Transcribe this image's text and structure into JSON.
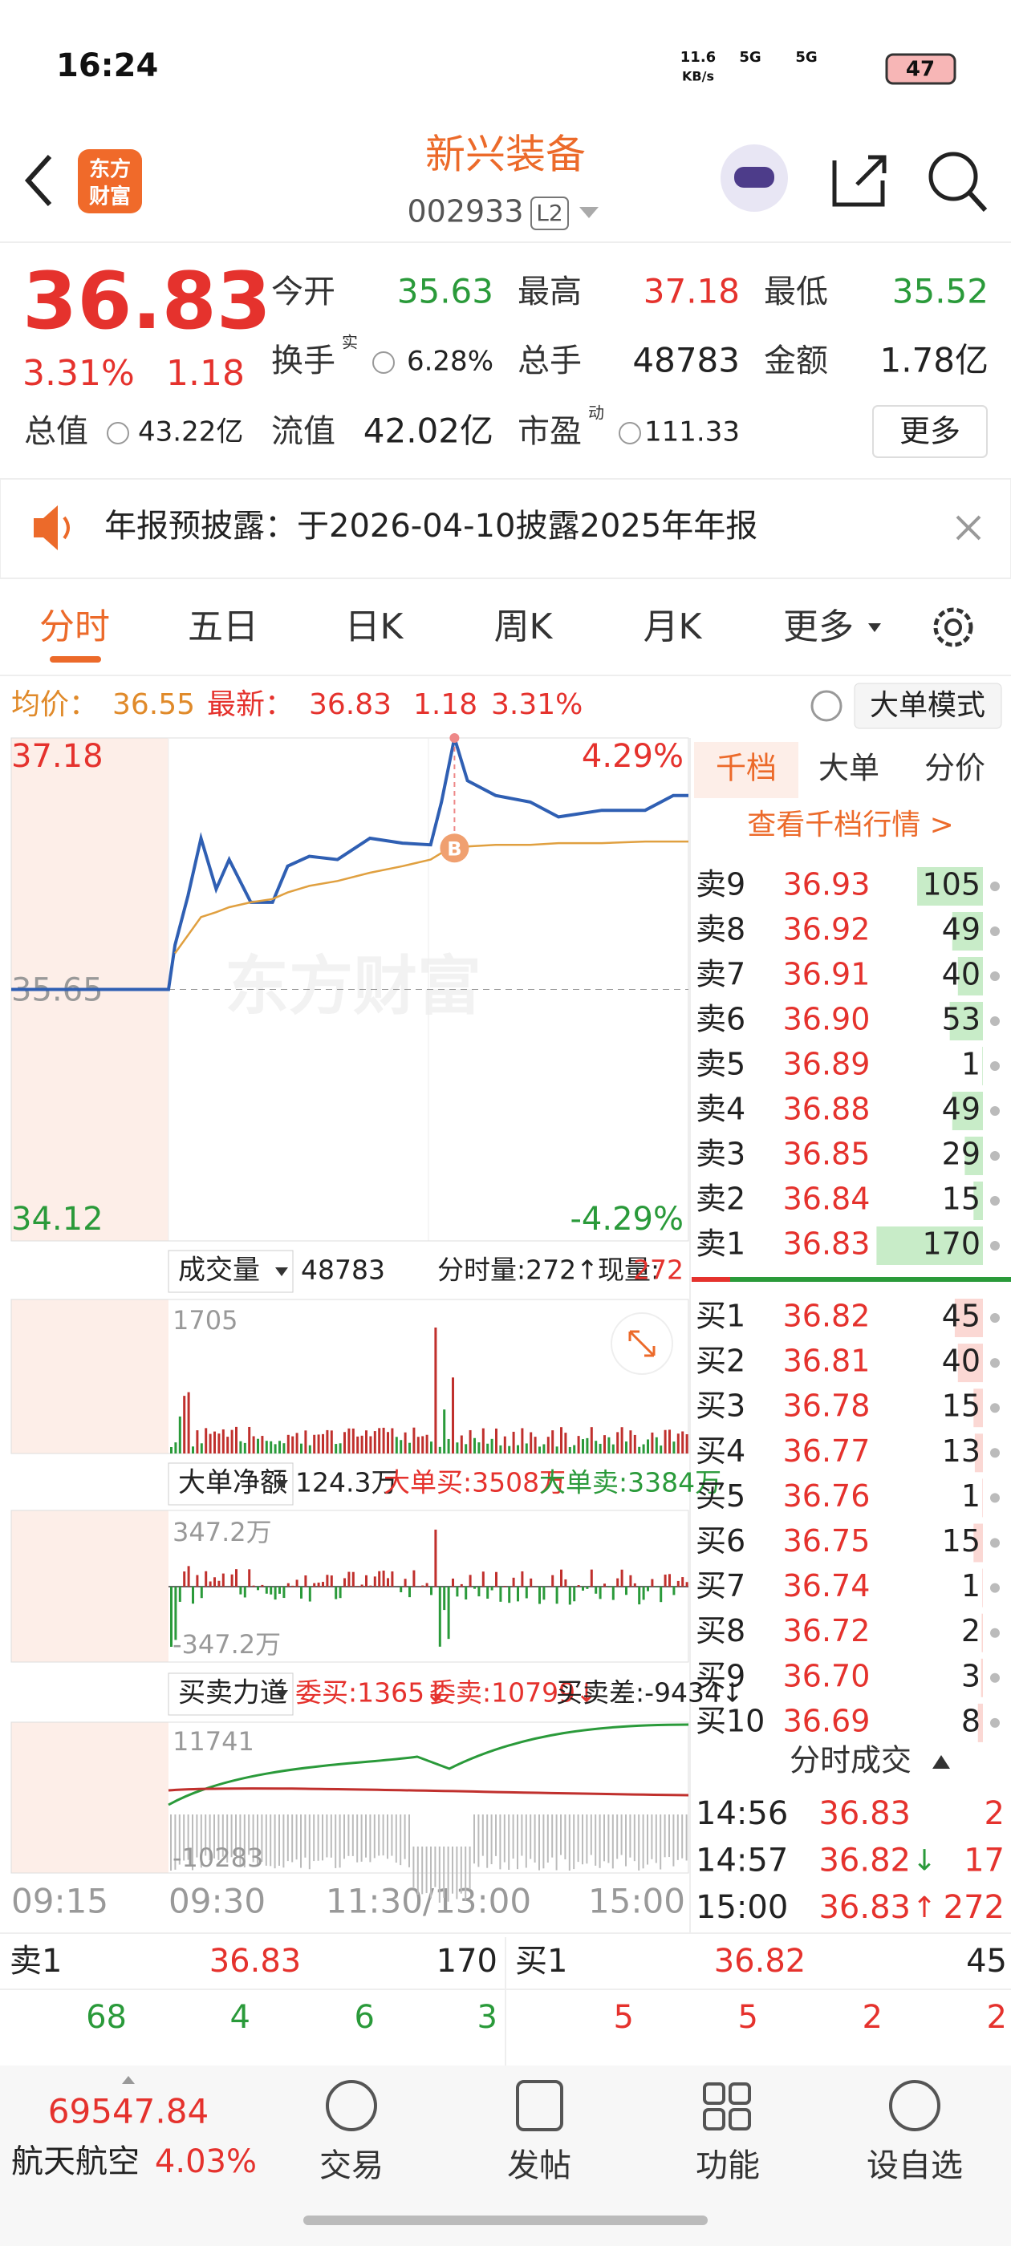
{
  "status_bar": {
    "time": "16:24",
    "net_speed": "11.6",
    "net_unit": "KB/s",
    "signal_1": "5G",
    "signal_2": "5G",
    "battery": "47"
  },
  "header": {
    "logo_lines": [
      "东方",
      "财富"
    ],
    "title": "新兴装备",
    "code": "002933",
    "level": "L2"
  },
  "quote": {
    "price": "36.83",
    "change_pct": "3.31%",
    "change": "1.18",
    "fields": [
      {
        "label": "今开",
        "value": "35.63"
      },
      {
        "label": "最高",
        "value": "37.18"
      },
      {
        "label": "最低",
        "value": "35.52"
      },
      {
        "label": "换手",
        "sup": "实",
        "value": "6.28%"
      },
      {
        "label": "总手",
        "value": "48783"
      },
      {
        "label": "金额",
        "value": "1.78亿"
      },
      {
        "label": "总值",
        "value": "43.22亿"
      },
      {
        "label": "流值",
        "value": "42.02亿"
      },
      {
        "label": "市盈",
        "sup": "动",
        "value": "111.33"
      }
    ],
    "more": "更多"
  },
  "notice": {
    "text": "年报预披露：于2026-04-10披露2025年年报"
  },
  "tabs": [
    "分时",
    "五日",
    "日K",
    "周K",
    "月K",
    "更多"
  ],
  "summary": {
    "avg_label": "均价：",
    "avg": "36.55",
    "last_label": "最新：",
    "last": "36.83",
    "change": "1.18",
    "change_pct": "3.31%",
    "mode_button": "大单模式"
  },
  "chart": {
    "type": "line",
    "watermark": "东方财富",
    "marker": "B",
    "x": [
      -15,
      0,
      3,
      9,
      15,
      22,
      28,
      38,
      48,
      55,
      65,
      78,
      93,
      108,
      121,
      126,
      132,
      138,
      151,
      167,
      180,
      200,
      220,
      233,
      240
    ],
    "xlim": [
      -15,
      240
    ],
    "xticks": [
      {
        "value": -15,
        "label": "09:15"
      },
      {
        "value": 0,
        "label": "09:30"
      },
      {
        "value": 120,
        "label": "11:30/13:00"
      },
      {
        "value": 240,
        "label": "15:00"
      }
    ],
    "ylim": [
      34.12,
      37.18
    ],
    "yticks": [
      37.18,
      35.65,
      34.12
    ],
    "y2lim": [
      -4.29,
      4.29
    ],
    "y2ticks": [
      {
        "value": 4.29,
        "label": "4.29%"
      },
      {
        "value": -4.29,
        "label": "-4.29%"
      }
    ],
    "series": [
      {
        "name": "price",
        "color": "#2f5fb3",
        "values": [
          35.65,
          35.65,
          35.92,
          36.22,
          36.57,
          36.26,
          36.44,
          36.18,
          36.18,
          36.4,
          36.46,
          36.44,
          36.57,
          36.54,
          36.53,
          36.79,
          37.18,
          36.92,
          36.83,
          36.79,
          36.7,
          36.74,
          36.74,
          36.83,
          36.83
        ]
      },
      {
        "name": "average",
        "color": "#e0a040",
        "values": [
          null,
          null,
          35.87,
          35.98,
          36.09,
          36.12,
          36.15,
          36.18,
          36.2,
          36.24,
          36.28,
          36.31,
          36.36,
          36.4,
          36.44,
          36.48,
          36.51,
          36.52,
          36.53,
          36.53,
          36.54,
          36.54,
          36.55,
          36.55,
          36.55
        ]
      }
    ]
  },
  "volume": {
    "selector": "成交量",
    "total": "48783",
    "minute_volume": "分时量:272↑",
    "current_label": "现量:",
    "current": "272",
    "max": "1705"
  },
  "big_order": {
    "selector": "大单净额",
    "net": "124.3万",
    "buy": "大单买:3508万",
    "sell": "大单卖:3384万",
    "max": "347.2万",
    "min": "-347.2万"
  },
  "force": {
    "selector": "买卖力道",
    "bid": "委买:1365↓",
    "ask": "委卖:10799↓",
    "diff": "买卖差:-9434↓",
    "max": "11741",
    "min": "-10283"
  },
  "order_book": {
    "tabs": [
      "千档",
      "大单",
      "分价"
    ],
    "link": "查看千档行情 >",
    "asks": [
      {
        "label": "卖9",
        "price": "36.93",
        "qty": 105
      },
      {
        "label": "卖8",
        "price": "36.92",
        "qty": 49
      },
      {
        "label": "卖7",
        "price": "36.91",
        "qty": 40
      },
      {
        "label": "卖6",
        "price": "36.90",
        "qty": 53
      },
      {
        "label": "卖5",
        "price": "36.89",
        "qty": 1
      },
      {
        "label": "卖4",
        "price": "36.88",
        "qty": 49
      },
      {
        "label": "卖3",
        "price": "36.85",
        "qty": 29
      },
      {
        "label": "卖2",
        "price": "36.84",
        "qty": 15
      },
      {
        "label": "卖1",
        "price": "36.83",
        "qty": 170
      }
    ],
    "bids": [
      {
        "label": "买1",
        "price": "36.82",
        "qty": 45
      },
      {
        "label": "买2",
        "price": "36.81",
        "qty": 40
      },
      {
        "label": "买3",
        "price": "36.78",
        "qty": 15
      },
      {
        "label": "买4",
        "price": "36.77",
        "qty": 13
      },
      {
        "label": "买5",
        "price": "36.76",
        "qty": 1
      },
      {
        "label": "买6",
        "price": "36.75",
        "qty": 15
      },
      {
        "label": "买7",
        "price": "36.74",
        "qty": 1
      },
      {
        "label": "买8",
        "price": "36.72",
        "qty": 2
      },
      {
        "label": "买9",
        "price": "36.70",
        "qty": 3
      },
      {
        "label": "买10",
        "price": "36.69",
        "qty": 8
      }
    ]
  },
  "trades": {
    "title": "分时成交",
    "rows": [
      {
        "time": "14:56",
        "price": "36.83",
        "qty": "2"
      },
      {
        "time": "14:57",
        "price": "36.82",
        "arrow": "↓",
        "qty": "17"
      },
      {
        "time": "15:00",
        "price": "36.83",
        "arrow": "↑",
        "qty": "272"
      }
    ]
  },
  "bottom_book": {
    "ask_label": "卖1",
    "ask_price": "36.83",
    "ask_qty": "170",
    "bid_label": "买1",
    "bid_price": "36.82",
    "bid_qty": "45",
    "ask_row": [
      "68",
      "4",
      "6",
      "3"
    ],
    "bid_row": [
      "5",
      "5",
      "2",
      "2"
    ]
  },
  "ticker": {
    "value": "69547.84",
    "name": "航天航空",
    "change_pct": "4.03%"
  },
  "nav": [
    "交易",
    "发帖",
    "功能",
    "设自选"
  ]
}
